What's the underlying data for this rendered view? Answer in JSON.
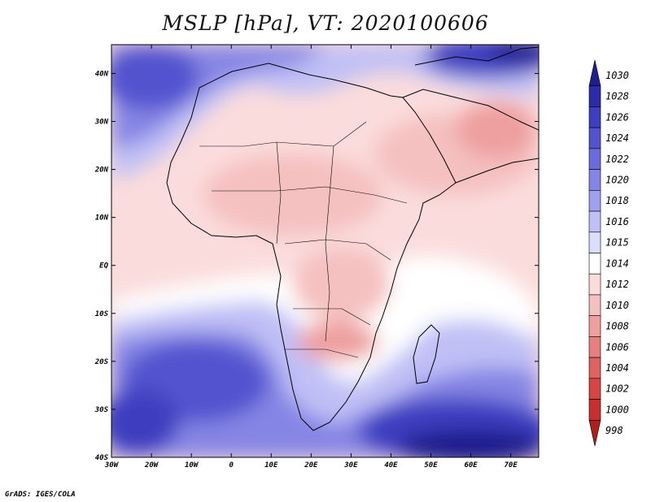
{
  "title": "MSLP [hPa], VT: 2020100606",
  "footer": "GrADS: IGES/COLA",
  "map": {
    "lon_range": [
      -30,
      77
    ],
    "lat_range": [
      -40,
      46
    ],
    "lon_ticks": [
      "30W",
      "20W",
      "10W",
      "0",
      "10E",
      "20E",
      "30E",
      "40E",
      "50E",
      "60E",
      "70E"
    ],
    "lat_ticks": [
      "40N",
      "30N",
      "20N",
      "10N",
      "EQ",
      "10S",
      "20S",
      "30S",
      "40S"
    ]
  },
  "colorbar": {
    "levels": [
      "1030",
      "1028",
      "1026",
      "1024",
      "1022",
      "1020",
      "1018",
      "1016",
      "1015",
      "1014",
      "1012",
      "1010",
      "1008",
      "1006",
      "1004",
      "1002",
      "1000",
      "998"
    ],
    "colors": [
      "#1e1e8c",
      "#2c2ca8",
      "#3e3ec0",
      "#5353cf",
      "#6b6bdb",
      "#8585e5",
      "#a0a0ef",
      "#c0c0f6",
      "#dcdcfb",
      "#ffffff",
      "#fbdcdc",
      "#f5c0c0",
      "#ee9f9f",
      "#e68080",
      "#df6262",
      "#d84545",
      "#c83030",
      "#b01e1e"
    ]
  }
}
